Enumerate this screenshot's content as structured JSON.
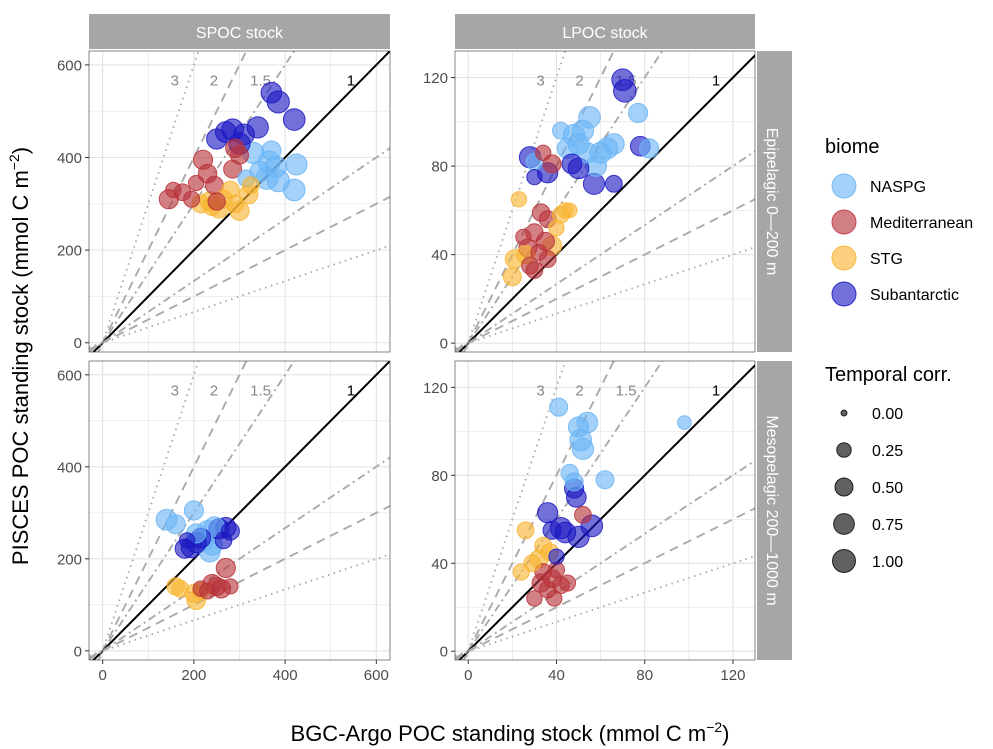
{
  "figure": {
    "xlabel": "BGC-Argo POC standing stock (mmol C m",
    "xlabel_sup": "−2",
    "xlabel_close": ")",
    "ylabel": "PISCES POC standing stock (mmol C m",
    "ylabel_sup": "−2",
    "ylabel_close": ")",
    "col_strips": [
      "SPOC stock",
      "LPOC stock"
    ],
    "row_strips": [
      "Epipelagic 0—200 m",
      "Mesopelagic 200—1000 m"
    ],
    "ratio_labels": [
      "3",
      "2",
      "1.5",
      "1"
    ],
    "colors": {
      "strip": "#a6a6a6",
      "grid": "#e3e3e3",
      "one_to_one": "#000000",
      "ratio_lines": "#aaaaaa",
      "NASPG": "#6ab4f5",
      "Mediterranean": "#b8323a",
      "STG": "#f8b431",
      "Subantarctic": "#1b19c2"
    }
  },
  "legend": {
    "biome_title": "biome",
    "biomes": [
      "NASPG",
      "Mediterranean",
      "STG",
      "Subantarctic"
    ],
    "corr_title": "Temporal corr.",
    "corr_values": [
      "0.00",
      "0.25",
      "0.50",
      "0.75",
      "1.00"
    ]
  },
  "chart_data": [
    {
      "type": "scatter",
      "panel": "SPOC stock / Epipelagic 0—200 m",
      "xlim": [
        -30,
        630
      ],
      "ylim": [
        -20,
        630
      ],
      "xticks": [
        0,
        200,
        400,
        600
      ],
      "yticks": [
        0,
        200,
        400,
        600
      ],
      "reference_lines": [
        3,
        2,
        1.5,
        1,
        0.667,
        0.5,
        0.333
      ],
      "points": [
        {
          "biome": "NASPG",
          "x": 330,
          "y": 410,
          "r": 0.8
        },
        {
          "biome": "NASPG",
          "x": 345,
          "y": 370,
          "r": 0.7
        },
        {
          "biome": "NASPG",
          "x": 360,
          "y": 355,
          "r": 0.9
        },
        {
          "biome": "NASPG",
          "x": 365,
          "y": 390,
          "r": 0.9
        },
        {
          "biome": "NASPG",
          "x": 370,
          "y": 415,
          "r": 0.6
        },
        {
          "biome": "NASPG",
          "x": 380,
          "y": 380,
          "r": 0.8
        },
        {
          "biome": "NASPG",
          "x": 385,
          "y": 350,
          "r": 0.9
        },
        {
          "biome": "NASPG",
          "x": 420,
          "y": 330,
          "r": 0.85
        },
        {
          "biome": "NASPG",
          "x": 425,
          "y": 385,
          "r": 0.8
        },
        {
          "biome": "NASPG",
          "x": 315,
          "y": 355,
          "r": 0.4
        },
        {
          "biome": "Mediterranean",
          "x": 145,
          "y": 310,
          "r": 0.6
        },
        {
          "biome": "Mediterranean",
          "x": 155,
          "y": 330,
          "r": 0.3
        },
        {
          "biome": "Mediterranean",
          "x": 175,
          "y": 325,
          "r": 0.4
        },
        {
          "biome": "Mediterranean",
          "x": 195,
          "y": 310,
          "r": 0.35
        },
        {
          "biome": "Mediterranean",
          "x": 205,
          "y": 345,
          "r": 0.3
        },
        {
          "biome": "Mediterranean",
          "x": 220,
          "y": 395,
          "r": 0.6
        },
        {
          "biome": "Mediterranean",
          "x": 230,
          "y": 365,
          "r": 0.55
        },
        {
          "biome": "Mediterranean",
          "x": 245,
          "y": 340,
          "r": 0.5
        },
        {
          "biome": "Mediterranean",
          "x": 250,
          "y": 305,
          "r": 0.45
        },
        {
          "biome": "Mediterranean",
          "x": 290,
          "y": 420,
          "r": 0.55
        },
        {
          "biome": "Mediterranean",
          "x": 300,
          "y": 405,
          "r": 0.5
        },
        {
          "biome": "Mediterranean",
          "x": 285,
          "y": 375,
          "r": 0.5
        },
        {
          "biome": "STG",
          "x": 215,
          "y": 300,
          "r": 0.5
        },
        {
          "biome": "STG",
          "x": 235,
          "y": 305,
          "r": 0.6
        },
        {
          "biome": "STG",
          "x": 240,
          "y": 295,
          "r": 0.55
        },
        {
          "biome": "STG",
          "x": 255,
          "y": 290,
          "r": 0.6
        },
        {
          "biome": "STG",
          "x": 265,
          "y": 310,
          "r": 0.5
        },
        {
          "biome": "STG",
          "x": 280,
          "y": 330,
          "r": 0.45
        },
        {
          "biome": "STG",
          "x": 300,
          "y": 285,
          "r": 0.6
        },
        {
          "biome": "STG",
          "x": 320,
          "y": 320,
          "r": 0.55
        },
        {
          "biome": "STG",
          "x": 325,
          "y": 340,
          "r": 0.4
        },
        {
          "biome": "STG",
          "x": 290,
          "y": 300,
          "r": 0.45
        },
        {
          "biome": "Subantarctic",
          "x": 250,
          "y": 440,
          "r": 0.7
        },
        {
          "biome": "Subantarctic",
          "x": 270,
          "y": 455,
          "r": 0.75
        },
        {
          "biome": "Subantarctic",
          "x": 285,
          "y": 460,
          "r": 0.85
        },
        {
          "biome": "Subantarctic",
          "x": 300,
          "y": 430,
          "r": 0.8
        },
        {
          "biome": "Subantarctic",
          "x": 310,
          "y": 450,
          "r": 0.75
        },
        {
          "biome": "Subantarctic",
          "x": 340,
          "y": 465,
          "r": 0.8
        },
        {
          "biome": "Subantarctic",
          "x": 370,
          "y": 540,
          "r": 0.75
        },
        {
          "biome": "Subantarctic",
          "x": 385,
          "y": 520,
          "r": 0.9
        },
        {
          "biome": "Subantarctic",
          "x": 420,
          "y": 482,
          "r": 0.85
        }
      ]
    },
    {
      "type": "scatter",
      "panel": "LPOC stock / Epipelagic 0—200 m",
      "xlim": [
        -6,
        130
      ],
      "ylim": [
        -4,
        132
      ],
      "xticks": [
        0,
        40,
        80,
        120
      ],
      "yticks": [
        0,
        40,
        80,
        120
      ],
      "reference_lines": [
        3,
        2,
        1.5,
        1,
        0.667,
        0.5,
        0.333
      ],
      "points": [
        {
          "biome": "NASPG",
          "x": 30,
          "y": 82,
          "r": 0.4
        },
        {
          "biome": "NASPG",
          "x": 42,
          "y": 96,
          "r": 0.4
        },
        {
          "biome": "NASPG",
          "x": 45,
          "y": 88,
          "r": 0.7
        },
        {
          "biome": "NASPG",
          "x": 48,
          "y": 94,
          "r": 0.85
        },
        {
          "biome": "NASPG",
          "x": 50,
          "y": 90,
          "r": 0.8
        },
        {
          "biome": "NASPG",
          "x": 52,
          "y": 96,
          "r": 0.8
        },
        {
          "biome": "NASPG",
          "x": 54,
          "y": 86,
          "r": 0.7
        },
        {
          "biome": "NASPG",
          "x": 55,
          "y": 102,
          "r": 0.85
        },
        {
          "biome": "NASPG",
          "x": 58,
          "y": 80,
          "r": 0.75
        },
        {
          "biome": "NASPG",
          "x": 60,
          "y": 86,
          "r": 0.8
        },
        {
          "biome": "NASPG",
          "x": 63,
          "y": 88,
          "r": 0.8
        },
        {
          "biome": "NASPG",
          "x": 66,
          "y": 90,
          "r": 0.75
        },
        {
          "biome": "NASPG",
          "x": 77,
          "y": 104,
          "r": 0.6
        },
        {
          "biome": "NASPG",
          "x": 82,
          "y": 88,
          "r": 0.6
        },
        {
          "biome": "Mediterranean",
          "x": 25,
          "y": 48,
          "r": 0.3
        },
        {
          "biome": "Mediterranean",
          "x": 27,
          "y": 43,
          "r": 0.5
        },
        {
          "biome": "Mediterranean",
          "x": 28,
          "y": 35,
          "r": 0.4
        },
        {
          "biome": "Mediterranean",
          "x": 30,
          "y": 50,
          "r": 0.45
        },
        {
          "biome": "Mediterranean",
          "x": 32,
          "y": 41,
          "r": 0.35
        },
        {
          "biome": "Mediterranean",
          "x": 33,
          "y": 59,
          "r": 0.45
        },
        {
          "biome": "Mediterranean",
          "x": 34,
          "y": 86,
          "r": 0.3
        },
        {
          "biome": "Mediterranean",
          "x": 35,
          "y": 46,
          "r": 0.5
        },
        {
          "biome": "Mediterranean",
          "x": 36,
          "y": 38,
          "r": 0.4
        },
        {
          "biome": "Mediterranean",
          "x": 38,
          "y": 81,
          "r": 0.5
        },
        {
          "biome": "Mediterranean",
          "x": 36,
          "y": 56,
          "r": 0.4
        },
        {
          "biome": "Mediterranean",
          "x": 30,
          "y": 33,
          "r": 0.4
        },
        {
          "biome": "STG",
          "x": 20,
          "y": 30,
          "r": 0.5
        },
        {
          "biome": "STG",
          "x": 21,
          "y": 38,
          "r": 0.55
        },
        {
          "biome": "STG",
          "x": 23,
          "y": 65,
          "r": 0.3
        },
        {
          "biome": "STG",
          "x": 26,
          "y": 40,
          "r": 0.5
        },
        {
          "biome": "STG",
          "x": 38,
          "y": 44,
          "r": 0.6
        },
        {
          "biome": "STG",
          "x": 40,
          "y": 52,
          "r": 0.3
        },
        {
          "biome": "STG",
          "x": 42,
          "y": 58,
          "r": 0.4
        },
        {
          "biome": "STG",
          "x": 44,
          "y": 60,
          "r": 0.3
        },
        {
          "biome": "STG",
          "x": 46,
          "y": 60,
          "r": 0.25
        },
        {
          "biome": "Subantarctic",
          "x": 30,
          "y": 75,
          "r": 0.3
        },
        {
          "biome": "Subantarctic",
          "x": 28,
          "y": 84,
          "r": 0.8
        },
        {
          "biome": "Subantarctic",
          "x": 36,
          "y": 77,
          "r": 0.7
        },
        {
          "biome": "Subantarctic",
          "x": 47,
          "y": 81,
          "r": 0.65
        },
        {
          "biome": "Subantarctic",
          "x": 50,
          "y": 79,
          "r": 0.75
        },
        {
          "biome": "Subantarctic",
          "x": 57,
          "y": 72,
          "r": 0.8
        },
        {
          "biome": "Subantarctic",
          "x": 66,
          "y": 72,
          "r": 0.4
        },
        {
          "biome": "Subantarctic",
          "x": 70,
          "y": 119,
          "r": 0.85
        },
        {
          "biome": "Subantarctic",
          "x": 71,
          "y": 114,
          "r": 0.95
        },
        {
          "biome": "Subantarctic",
          "x": 78,
          "y": 89,
          "r": 0.65
        }
      ]
    },
    {
      "type": "scatter",
      "panel": "SPOC stock / Mesopelagic 200—1000 m",
      "xlim": [
        -30,
        630
      ],
      "ylim": [
        -20,
        630
      ],
      "xticks": [
        0,
        200,
        400,
        600
      ],
      "yticks": [
        0,
        200,
        400,
        600
      ],
      "reference_lines": [
        3,
        2,
        1.5,
        1,
        0.667,
        0.5,
        0.333
      ],
      "points": [
        {
          "biome": "NASPG",
          "x": 140,
          "y": 285,
          "r": 0.75
        },
        {
          "biome": "NASPG",
          "x": 160,
          "y": 275,
          "r": 0.6
        },
        {
          "biome": "NASPG",
          "x": 200,
          "y": 305,
          "r": 0.6
        },
        {
          "biome": "NASPG",
          "x": 205,
          "y": 255,
          "r": 0.6
        },
        {
          "biome": "NASPG",
          "x": 220,
          "y": 240,
          "r": 0.8
        },
        {
          "biome": "NASPG",
          "x": 230,
          "y": 260,
          "r": 0.8
        },
        {
          "biome": "NASPG",
          "x": 240,
          "y": 230,
          "r": 0.7
        },
        {
          "biome": "NASPG",
          "x": 245,
          "y": 270,
          "r": 0.65
        },
        {
          "biome": "NASPG",
          "x": 235,
          "y": 215,
          "r": 0.7
        },
        {
          "biome": "Mediterranean",
          "x": 215,
          "y": 135,
          "r": 0.3
        },
        {
          "biome": "Mediterranean",
          "x": 230,
          "y": 130,
          "r": 0.35
        },
        {
          "biome": "Mediterranean",
          "x": 240,
          "y": 145,
          "r": 0.6
        },
        {
          "biome": "Mediterranean",
          "x": 250,
          "y": 140,
          "r": 0.5
        },
        {
          "biome": "Mediterranean",
          "x": 260,
          "y": 135,
          "r": 0.55
        },
        {
          "biome": "Mediterranean",
          "x": 270,
          "y": 180,
          "r": 0.6
        },
        {
          "biome": "Mediterranean",
          "x": 280,
          "y": 140,
          "r": 0.3
        },
        {
          "biome": "STG",
          "x": 160,
          "y": 140,
          "r": 0.45
        },
        {
          "biome": "STG",
          "x": 170,
          "y": 135,
          "r": 0.4
        },
        {
          "biome": "STG",
          "x": 200,
          "y": 125,
          "r": 0.5
        },
        {
          "biome": "STG",
          "x": 205,
          "y": 110,
          "r": 0.55
        },
        {
          "biome": "STG",
          "x": 215,
          "y": 130,
          "r": 0.4
        },
        {
          "biome": "Subantarctic",
          "x": 180,
          "y": 222,
          "r": 0.6
        },
        {
          "biome": "Subantarctic",
          "x": 185,
          "y": 240,
          "r": 0.3
        },
        {
          "biome": "Subantarctic",
          "x": 195,
          "y": 225,
          "r": 0.75
        },
        {
          "biome": "Subantarctic",
          "x": 205,
          "y": 235,
          "r": 0.7
        },
        {
          "biome": "Subantarctic",
          "x": 215,
          "y": 245,
          "r": 0.65
        },
        {
          "biome": "Subantarctic",
          "x": 255,
          "y": 265,
          "r": 0.7
        },
        {
          "biome": "Subantarctic",
          "x": 270,
          "y": 268,
          "r": 0.7
        },
        {
          "biome": "Subantarctic",
          "x": 265,
          "y": 240,
          "r": 0.4
        },
        {
          "biome": "Subantarctic",
          "x": 280,
          "y": 260,
          "r": 0.5
        }
      ]
    },
    {
      "type": "scatter",
      "panel": "LPOC stock / Mesopelagic 200—1000 m",
      "xlim": [
        -6,
        130
      ],
      "ylim": [
        -4,
        132
      ],
      "xticks": [
        0,
        40,
        80,
        120
      ],
      "yticks": [
        0,
        40,
        80,
        120
      ],
      "reference_lines": [
        3,
        2,
        1.5,
        1,
        0.667,
        0.5,
        0.333
      ],
      "points": [
        {
          "biome": "NASPG",
          "x": 41,
          "y": 111,
          "r": 0.5
        },
        {
          "biome": "NASPG",
          "x": 46,
          "y": 81,
          "r": 0.45
        },
        {
          "biome": "NASPG",
          "x": 48,
          "y": 77,
          "r": 0.5
        },
        {
          "biome": "NASPG",
          "x": 50,
          "y": 102,
          "r": 0.7
        },
        {
          "biome": "NASPG",
          "x": 51,
          "y": 96,
          "r": 0.85
        },
        {
          "biome": "NASPG",
          "x": 52,
          "y": 92,
          "r": 0.8
        },
        {
          "biome": "NASPG",
          "x": 54,
          "y": 104,
          "r": 0.75
        },
        {
          "biome": "NASPG",
          "x": 62,
          "y": 78,
          "r": 0.5
        },
        {
          "biome": "NASPG",
          "x": 98,
          "y": 104,
          "r": 0.2
        },
        {
          "biome": "Mediterranean",
          "x": 30,
          "y": 24,
          "r": 0.3
        },
        {
          "biome": "Mediterranean",
          "x": 33,
          "y": 31,
          "r": 0.5
        },
        {
          "biome": "Mediterranean",
          "x": 34,
          "y": 36,
          "r": 0.4
        },
        {
          "biome": "Mediterranean",
          "x": 36,
          "y": 28,
          "r": 0.4
        },
        {
          "biome": "Mediterranean",
          "x": 38,
          "y": 33,
          "r": 0.5
        },
        {
          "biome": "Mediterranean",
          "x": 39,
          "y": 24,
          "r": 0.3
        },
        {
          "biome": "Mediterranean",
          "x": 40,
          "y": 37,
          "r": 0.35
        },
        {
          "biome": "Mediterranean",
          "x": 42,
          "y": 30,
          "r": 0.4
        },
        {
          "biome": "Mediterranean",
          "x": 45,
          "y": 31,
          "r": 0.35
        },
        {
          "biome": "Mediterranean",
          "x": 52,
          "y": 62,
          "r": 0.4
        },
        {
          "biome": "STG",
          "x": 24,
          "y": 36,
          "r": 0.35
        },
        {
          "biome": "STG",
          "x": 26,
          "y": 55,
          "r": 0.4
        },
        {
          "biome": "STG",
          "x": 29,
          "y": 40,
          "r": 0.4
        },
        {
          "biome": "STG",
          "x": 32,
          "y": 42,
          "r": 0.5
        },
        {
          "biome": "STG",
          "x": 34,
          "y": 48,
          "r": 0.4
        },
        {
          "biome": "STG",
          "x": 37,
          "y": 45,
          "r": 0.45
        },
        {
          "biome": "Subantarctic",
          "x": 36,
          "y": 63,
          "r": 0.7
        },
        {
          "biome": "Subantarctic",
          "x": 38,
          "y": 55,
          "r": 0.5
        },
        {
          "biome": "Subantarctic",
          "x": 42,
          "y": 56,
          "r": 0.8
        },
        {
          "biome": "Subantarctic",
          "x": 44,
          "y": 54,
          "r": 0.75
        },
        {
          "biome": "Subantarctic",
          "x": 48,
          "y": 74,
          "r": 0.6
        },
        {
          "biome": "Subantarctic",
          "x": 49,
          "y": 70,
          "r": 0.65
        },
        {
          "biome": "Subantarctic",
          "x": 50,
          "y": 52,
          "r": 0.8
        },
        {
          "biome": "Subantarctic",
          "x": 56,
          "y": 57,
          "r": 0.85
        },
        {
          "biome": "Subantarctic",
          "x": 40,
          "y": 43,
          "r": 0.3
        }
      ]
    }
  ]
}
